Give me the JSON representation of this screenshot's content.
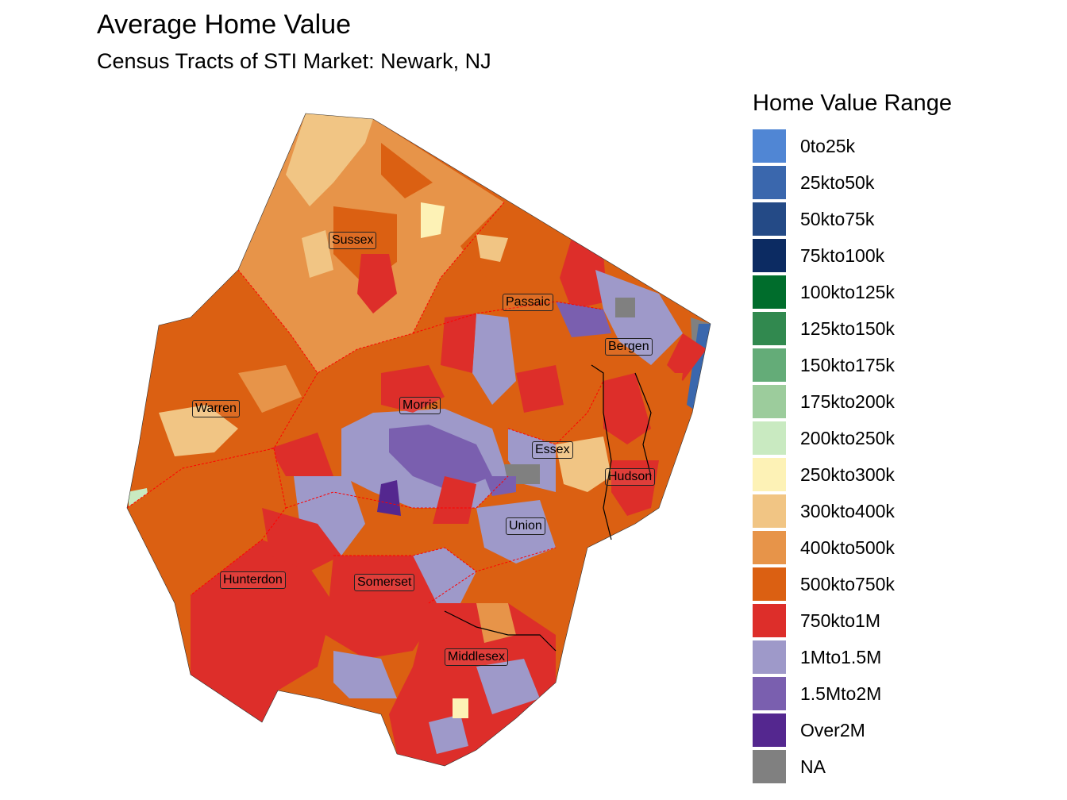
{
  "title": "Average Home Value",
  "subtitle": "Census Tracts of STI Market: Newark, NJ",
  "legend": {
    "title": "Home Value Range",
    "items": [
      {
        "label": "0to25k",
        "color": "#5086d4"
      },
      {
        "label": "25kto50k",
        "color": "#3a67ad"
      },
      {
        "label": "50kto75k",
        "color": "#244a86"
      },
      {
        "label": "75kto100k",
        "color": "#0c2b62"
      },
      {
        "label": "100kto125k",
        "color": "#006d2c"
      },
      {
        "label": "125kto150k",
        "color": "#31894f"
      },
      {
        "label": "150kto175k",
        "color": "#64ac78"
      },
      {
        "label": "175kto200k",
        "color": "#9ccc9c"
      },
      {
        "label": "200kto250k",
        "color": "#c9eac1"
      },
      {
        "label": "250kto300k",
        "color": "#fdf2b6"
      },
      {
        "label": "300kto400k",
        "color": "#f1c584"
      },
      {
        "label": "400kto500k",
        "color": "#e79449"
      },
      {
        "label": "500kto750k",
        "color": "#db6012"
      },
      {
        "label": "750kto1M",
        "color": "#dd2e2a"
      },
      {
        "label": "1Mto1.5M",
        "color": "#9e99c9"
      },
      {
        "label": "1.5Mto2M",
        "color": "#7a5faf"
      },
      {
        "label": "Over2M",
        "color": "#54278f"
      },
      {
        "label": "NA",
        "color": "#808080"
      }
    ]
  },
  "counties": [
    "Sussex",
    "Passaic",
    "Bergen",
    "Warren",
    "Morris",
    "Essex",
    "Hudson",
    "Union",
    "Hunterdon",
    "Somerset",
    "Middlesex"
  ]
}
